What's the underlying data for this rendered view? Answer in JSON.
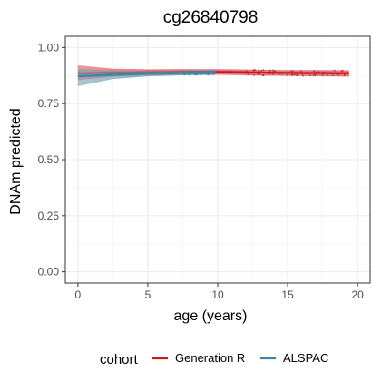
{
  "chart_data": {
    "type": "line",
    "title": "cg26840798",
    "xlabel": "age (years)",
    "ylabel": "DNAm predicted",
    "xlim": [
      -0.9,
      20.9
    ],
    "ylim": [
      -0.05,
      1.05
    ],
    "x_ticks": [
      0,
      5,
      10,
      15,
      20
    ],
    "x_tick_labels": [
      "0",
      "5",
      "10",
      "15",
      "20"
    ],
    "y_ticks": [
      0.0,
      0.25,
      0.5,
      0.75,
      1.0
    ],
    "y_tick_labels": [
      "0.00",
      "0.25",
      "0.50",
      "0.75",
      "1.00"
    ],
    "grid": true,
    "legend": {
      "title": "cohort",
      "position": "bottom"
    },
    "series": [
      {
        "name": "Generation R",
        "color": "#c8171e",
        "band_color": "#e8777b",
        "x": [
          0,
          2.5,
          5,
          7.5,
          10,
          12.5,
          15,
          17.5,
          19.4
        ],
        "y": [
          0.885,
          0.887,
          0.889,
          0.891,
          0.891,
          0.889,
          0.887,
          0.886,
          0.885
        ],
        "band_lower": [
          0.855,
          0.872,
          0.878,
          0.88,
          0.879,
          0.876,
          0.874,
          0.872,
          0.871
        ],
        "band_upper": [
          0.92,
          0.905,
          0.902,
          0.903,
          0.903,
          0.901,
          0.899,
          0.899,
          0.898
        ]
      },
      {
        "name": "ALSPAC",
        "color": "#3a87a6",
        "band_color": "#8fa8b4",
        "x": [
          0,
          2.5,
          5,
          7.5,
          9.8
        ],
        "y": [
          0.872,
          0.878,
          0.883,
          0.886,
          0.887
        ],
        "band_lower": [
          0.828,
          0.86,
          0.872,
          0.877,
          0.879
        ],
        "band_upper": [
          0.905,
          0.895,
          0.893,
          0.895,
          0.895
        ]
      }
    ]
  }
}
